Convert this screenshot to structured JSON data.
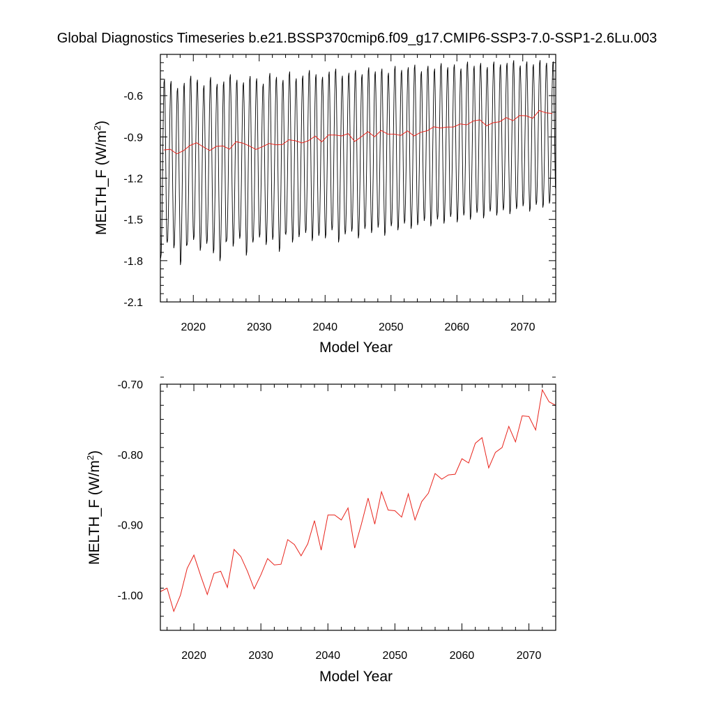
{
  "title": "Global Diagnostics Timeseries b.e21.BSSP370cmip6.f09_g17.CMIP6-SSP3-7.0-SSP1-2.6Lu.003",
  "colors": {
    "monthly": "#000000",
    "annual": "#e8231b",
    "axis": "#000000"
  },
  "chart_data": [
    {
      "type": "line",
      "xlabel": "Model Year",
      "ylabel": "MELTH_F (W/m",
      "ylabel_sup": "2",
      "ylabel_tail": ")",
      "xlim": [
        2015,
        2075
      ],
      "ylim": [
        -2.1,
        -0.3
      ],
      "xticks": [
        2020,
        2030,
        2040,
        2050,
        2060,
        2070
      ],
      "xtick_labels": [
        "2020",
        "2030",
        "2040",
        "2050",
        "2060",
        "2070"
      ],
      "yticks": [
        -2.1,
        -1.8,
        -1.5,
        -1.2,
        -0.9,
        -0.6
      ],
      "ytick_labels": [
        "-2.1",
        "-1.8",
        "-1.5",
        "-1.2",
        "-0.9",
        "-0.6"
      ],
      "series": [
        {
          "role": "monthly",
          "color": "#000000",
          "seasonal_peak": [
            -0.45,
            -0.47,
            -0.52,
            -0.48,
            -0.43,
            -0.46,
            -0.5,
            -0.44,
            -0.49,
            -0.47,
            -0.42,
            -0.46,
            -0.48,
            -0.43,
            -0.45,
            -0.49,
            -0.41,
            -0.44,
            -0.46,
            -0.4,
            -0.45,
            -0.43,
            -0.39,
            -0.42,
            -0.44,
            -0.4,
            -0.38,
            -0.43,
            -0.41,
            -0.39,
            -0.42,
            -0.37,
            -0.4,
            -0.38,
            -0.41,
            -0.36,
            -0.39,
            -0.37,
            -0.35,
            -0.4,
            -0.36,
            -0.38,
            -0.34,
            -0.37,
            -0.35,
            -0.38,
            -0.33,
            -0.36,
            -0.34,
            -0.37,
            -0.33,
            -0.35,
            -0.34,
            -0.32,
            -0.36,
            -0.33,
            -0.35,
            -0.32,
            -0.34,
            -0.33
          ],
          "seasonal_trough": [
            -1.84,
            -1.72,
            -1.76,
            -1.89,
            -1.74,
            -1.7,
            -1.78,
            -1.73,
            -1.8,
            -1.86,
            -1.71,
            -1.75,
            -1.69,
            -1.82,
            -1.72,
            -1.68,
            -1.74,
            -1.7,
            -1.79,
            -1.66,
            -1.72,
            -1.68,
            -1.65,
            -1.71,
            -1.67,
            -1.69,
            -1.63,
            -1.72,
            -1.66,
            -1.64,
            -1.69,
            -1.62,
            -1.65,
            -1.61,
            -1.67,
            -1.6,
            -1.63,
            -1.58,
            -1.62,
            -1.59,
            -1.56,
            -1.6,
            -1.55,
            -1.58,
            -1.53,
            -1.57,
            -1.52,
            -1.55,
            -1.5,
            -1.54,
            -1.49,
            -1.52,
            -1.48,
            -1.51,
            -1.47,
            -1.45,
            -1.49,
            -1.44,
            -1.46,
            -1.43
          ]
        },
        {
          "role": "annual",
          "color": "#e8231b",
          "x": [
            2015.5,
            2016.5,
            2017.5,
            2018.5,
            2019.5,
            2020.5,
            2021.5,
            2022.5,
            2023.5,
            2024.5,
            2025.5,
            2026.5,
            2027.5,
            2028.5,
            2029.5,
            2030.5,
            2031.5,
            2032.5,
            2033.5,
            2034.5,
            2035.5,
            2036.5,
            2037.5,
            2038.5,
            2039.5,
            2040.5,
            2041.5,
            2042.5,
            2043.5,
            2044.5,
            2045.5,
            2046.5,
            2047.5,
            2048.5,
            2049.5,
            2050.5,
            2051.5,
            2052.5,
            2053.5,
            2054.5,
            2055.5,
            2056.5,
            2057.5,
            2058.5,
            2059.5,
            2060.5,
            2061.5,
            2062.5,
            2063.5,
            2064.5,
            2065.5,
            2066.5,
            2067.5,
            2068.5,
            2069.5,
            2070.5,
            2071.5,
            2072.5,
            2073.5,
            2074.5
          ],
          "y": [
            -0.995,
            -0.99,
            -1.023,
            -1.0,
            -0.962,
            -0.943,
            -0.972,
            -0.999,
            -0.969,
            -0.966,
            -0.989,
            -0.935,
            -0.945,
            -0.966,
            -0.991,
            -0.971,
            -0.948,
            -0.957,
            -0.956,
            -0.921,
            -0.928,
            -0.944,
            -0.927,
            -0.894,
            -0.936,
            -0.886,
            -0.886,
            -0.893,
            -0.876,
            -0.933,
            -0.899,
            -0.862,
            -0.899,
            -0.853,
            -0.879,
            -0.88,
            -0.889,
            -0.856,
            -0.893,
            -0.867,
            -0.855,
            -0.827,
            -0.835,
            -0.829,
            -0.828,
            -0.806,
            -0.812,
            -0.784,
            -0.776,
            -0.819,
            -0.797,
            -0.79,
            -0.76,
            -0.782,
            -0.745,
            -0.746,
            -0.765,
            -0.708,
            -0.725,
            -0.73
          ]
        }
      ]
    },
    {
      "type": "line",
      "xlabel": "Model Year",
      "ylabel": "MELTH_F (W/m",
      "ylabel_sup": "2",
      "ylabel_tail": ")",
      "xlim": [
        2015,
        2074
      ],
      "ylim": [
        -1.05,
        -0.7
      ],
      "xticks": [
        2020,
        2030,
        2040,
        2050,
        2060,
        2070
      ],
      "xtick_labels": [
        "2020",
        "2030",
        "2040",
        "2050",
        "2060",
        "2070"
      ],
      "yticks": [
        -1.0,
        -0.9,
        -0.8,
        -0.7
      ],
      "ytick_labels": [
        "-1.00",
        "-0.90",
        "-0.80",
        "-0.70"
      ],
      "series": [
        {
          "role": "annual",
          "color": "#e8231b",
          "x": [
            2015,
            2016,
            2017,
            2018,
            2019,
            2020,
            2021,
            2022,
            2023,
            2024,
            2025,
            2026,
            2027,
            2028,
            2029,
            2030,
            2031,
            2032,
            2033,
            2034,
            2035,
            2036,
            2037,
            2038,
            2039,
            2040,
            2041,
            2042,
            2043,
            2044,
            2045,
            2046,
            2047,
            2048,
            2049,
            2050,
            2051,
            2052,
            2053,
            2054,
            2055,
            2056,
            2057,
            2058,
            2059,
            2060,
            2061,
            2062,
            2063,
            2064,
            2065,
            2066,
            2067,
            2068,
            2069,
            2070,
            2071,
            2072,
            2073,
            2074
          ],
          "y": [
            -0.995,
            -0.99,
            -1.023,
            -1.0,
            -0.962,
            -0.943,
            -0.972,
            -0.999,
            -0.969,
            -0.966,
            -0.989,
            -0.935,
            -0.945,
            -0.966,
            -0.991,
            -0.971,
            -0.948,
            -0.957,
            -0.956,
            -0.921,
            -0.928,
            -0.944,
            -0.927,
            -0.894,
            -0.936,
            -0.886,
            -0.886,
            -0.893,
            -0.876,
            -0.933,
            -0.899,
            -0.862,
            -0.899,
            -0.853,
            -0.879,
            -0.88,
            -0.889,
            -0.856,
            -0.893,
            -0.867,
            -0.855,
            -0.827,
            -0.835,
            -0.829,
            -0.828,
            -0.806,
            -0.812,
            -0.784,
            -0.776,
            -0.819,
            -0.797,
            -0.79,
            -0.76,
            -0.782,
            -0.745,
            -0.746,
            -0.765,
            -0.708,
            -0.725,
            -0.73
          ]
        }
      ]
    }
  ]
}
